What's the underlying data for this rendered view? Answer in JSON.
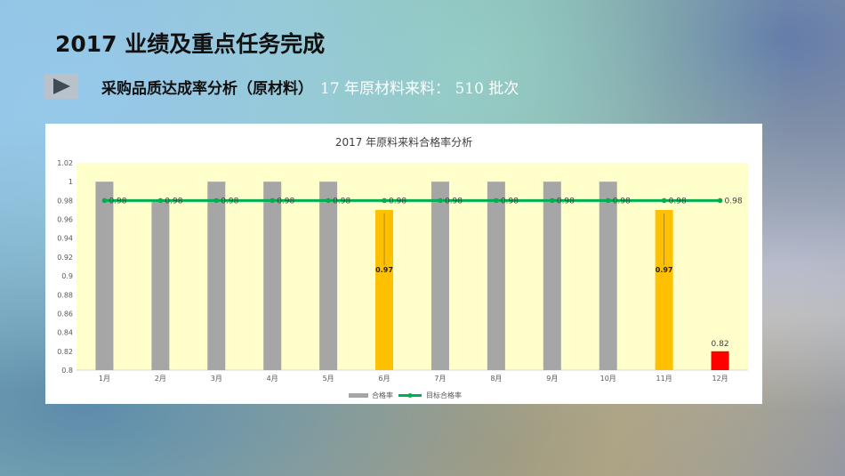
{
  "page": {
    "title": "2017 业绩及重点任务完成",
    "subtitle": "采购品质达成率分析（原材料）",
    "subtitle_extra": "17 年原材料来料： 510 批次",
    "arrow_icon": "play-arrow-icon"
  },
  "chart_data": {
    "type": "bar",
    "title": "2017 年原料来料合格率分析",
    "categories": [
      "1月",
      "2月",
      "3月",
      "4月",
      "5月",
      "6月",
      "7月",
      "8月",
      "9月",
      "10月",
      "11月",
      "12月"
    ],
    "series": [
      {
        "name": "合格率",
        "type": "bar",
        "values": [
          1,
          0.98,
          1,
          1,
          1,
          0.97,
          1,
          1,
          1,
          1,
          0.97,
          0.82
        ]
      },
      {
        "name": "目标合格率",
        "type": "line",
        "values": [
          0.98,
          0.98,
          0.98,
          0.98,
          0.98,
          0.98,
          0.98,
          0.98,
          0.98,
          0.98,
          0.98,
          0.98
        ]
      }
    ],
    "bar_data_labels": [
      null,
      null,
      null,
      null,
      null,
      "0.97",
      null,
      null,
      null,
      null,
      "0.97",
      "0.82"
    ],
    "line_data_label": "0.98",
    "y_ticks": [
      "0.8",
      "0.82",
      "0.84",
      "0.86",
      "0.88",
      "0.9",
      "0.92",
      "0.94",
      "0.96",
      "0.98",
      "1",
      "1.02"
    ],
    "ylim": [
      0.8,
      1.02
    ],
    "grid": false,
    "legend": "bottom",
    "colors": {
      "bar": "#a6a6a6",
      "bar_warn": "#ffc000",
      "bar_bad": "#ff0000",
      "line": "#00b050",
      "plot_bg": "#ffffcc"
    }
  }
}
